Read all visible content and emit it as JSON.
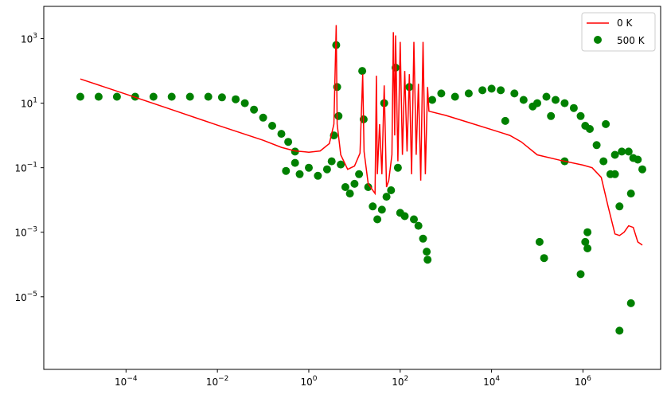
{
  "chart_data": {
    "type": "line+scatter",
    "title": "",
    "xlabel": "",
    "ylabel": "",
    "xscale": "log",
    "yscale": "log",
    "xlim_log10": [
      -5.8,
      7.7
    ],
    "ylim_log10": [
      -7.25,
      4.0
    ],
    "grid": false,
    "legend_position": "top-right",
    "x_ticks": [
      {
        "exp": -4,
        "base": "10",
        "sup": "−4"
      },
      {
        "exp": -2,
        "base": "10",
        "sup": "−2"
      },
      {
        "exp": 0,
        "base": "10",
        "sup": "0"
      },
      {
        "exp": 2,
        "base": "10",
        "sup": "2"
      },
      {
        "exp": 4,
        "base": "10",
        "sup": "4"
      },
      {
        "exp": 6,
        "base": "10",
        "sup": "6"
      }
    ],
    "y_ticks": [
      {
        "exp": -5,
        "base": "10",
        "sup": "−5"
      },
      {
        "exp": -3,
        "base": "10",
        "sup": "−3"
      },
      {
        "exp": -1,
        "base": "10",
        "sup": "−1"
      },
      {
        "exp": 1,
        "base": "10",
        "sup": "1"
      },
      {
        "exp": 3,
        "base": "10",
        "sup": "3"
      }
    ],
    "series": [
      {
        "name": "0 K",
        "kind": "line",
        "color": "#ff0000",
        "points_log10": [
          [
            -5.0,
            1.75
          ],
          [
            -4.0,
            1.28
          ],
          [
            -3.0,
            0.8
          ],
          [
            -2.0,
            0.32
          ],
          [
            -1.0,
            -0.15
          ],
          [
            -0.6,
            -0.37
          ],
          [
            -0.3,
            -0.48
          ],
          [
            0.0,
            -0.52
          ],
          [
            0.25,
            -0.48
          ],
          [
            0.45,
            -0.25
          ],
          [
            0.55,
            0.35
          ],
          [
            0.6,
            3.42
          ],
          [
            0.62,
            0.35
          ],
          [
            0.7,
            -0.6
          ],
          [
            0.85,
            -1.05
          ],
          [
            1.0,
            -0.95
          ],
          [
            1.12,
            -0.55
          ],
          [
            1.18,
            1.9
          ],
          [
            1.21,
            -0.5
          ],
          [
            1.3,
            -1.5
          ],
          [
            1.45,
            -1.8
          ],
          [
            1.48,
            1.85
          ],
          [
            1.5,
            -1.2
          ],
          [
            1.55,
            0.35
          ],
          [
            1.6,
            -1.2
          ],
          [
            1.65,
            1.55
          ],
          [
            1.7,
            -1.6
          ],
          [
            1.75,
            -1.4
          ],
          [
            1.82,
            -0.6
          ],
          [
            1.85,
            3.2
          ],
          [
            1.88,
            0.0
          ],
          [
            1.9,
            3.1
          ],
          [
            1.95,
            -0.8
          ],
          [
            2.0,
            2.9
          ],
          [
            2.05,
            -0.6
          ],
          [
            2.1,
            2.0
          ],
          [
            2.15,
            -0.5
          ],
          [
            2.2,
            1.9
          ],
          [
            2.25,
            -1.2
          ],
          [
            2.3,
            2.9
          ],
          [
            2.35,
            -0.6
          ],
          [
            2.4,
            1.6
          ],
          [
            2.45,
            -1.4
          ],
          [
            2.5,
            2.9
          ],
          [
            2.55,
            -1.2
          ],
          [
            2.6,
            1.5
          ],
          [
            2.63,
            0.75
          ],
          [
            3.0,
            0.62
          ],
          [
            3.5,
            0.4
          ],
          [
            4.0,
            0.18
          ],
          [
            4.4,
            0.0
          ],
          [
            4.65,
            -0.2
          ],
          [
            5.0,
            -0.6
          ],
          [
            5.5,
            -0.77
          ],
          [
            6.0,
            -0.92
          ],
          [
            6.2,
            -1.0
          ],
          [
            6.4,
            -1.3
          ],
          [
            6.55,
            -2.2
          ],
          [
            6.7,
            -3.05
          ],
          [
            6.8,
            -3.1
          ],
          [
            6.9,
            -3.0
          ],
          [
            7.0,
            -2.8
          ],
          [
            7.1,
            -2.85
          ],
          [
            7.2,
            -3.3
          ],
          [
            7.3,
            -3.4
          ]
        ]
      },
      {
        "name": "500 K",
        "kind": "scatter",
        "color": "#008000",
        "points_log10": [
          [
            -5.0,
            1.2
          ],
          [
            -4.6,
            1.2
          ],
          [
            -4.2,
            1.2
          ],
          [
            -3.8,
            1.2
          ],
          [
            -3.4,
            1.2
          ],
          [
            -3.0,
            1.2
          ],
          [
            -2.6,
            1.2
          ],
          [
            -2.2,
            1.2
          ],
          [
            -1.9,
            1.18
          ],
          [
            -1.6,
            1.12
          ],
          [
            -1.4,
            1.0
          ],
          [
            -1.2,
            0.8
          ],
          [
            -1.0,
            0.55
          ],
          [
            -0.8,
            0.3
          ],
          [
            -0.6,
            0.05
          ],
          [
            -0.45,
            -0.2
          ],
          [
            -0.3,
            -0.5
          ],
          [
            -0.3,
            -0.85
          ],
          [
            -0.5,
            -1.1
          ],
          [
            -0.2,
            -1.2
          ],
          [
            0.0,
            -1.0
          ],
          [
            0.2,
            -1.25
          ],
          [
            0.4,
            -1.05
          ],
          [
            0.5,
            -0.8
          ],
          [
            0.55,
            0.0
          ],
          [
            0.6,
            2.8
          ],
          [
            0.62,
            1.5
          ],
          [
            0.65,
            0.6
          ],
          [
            0.7,
            -0.9
          ],
          [
            0.8,
            -1.6
          ],
          [
            0.9,
            -1.8
          ],
          [
            1.0,
            -1.5
          ],
          [
            1.1,
            -1.2
          ],
          [
            1.17,
            2.0
          ],
          [
            1.2,
            0.5
          ],
          [
            1.3,
            -1.6
          ],
          [
            1.4,
            -2.2
          ],
          [
            1.5,
            -2.6
          ],
          [
            1.6,
            -2.3
          ],
          [
            1.65,
            1.0
          ],
          [
            1.7,
            -1.9
          ],
          [
            1.8,
            -1.7
          ],
          [
            1.9,
            2.1
          ],
          [
            1.95,
            -1.0
          ],
          [
            2.0,
            -2.4
          ],
          [
            2.1,
            -2.5
          ],
          [
            2.2,
            1.5
          ],
          [
            2.3,
            -2.6
          ],
          [
            2.4,
            -2.8
          ],
          [
            2.5,
            -3.2
          ],
          [
            2.58,
            -3.6
          ],
          [
            2.6,
            -3.85
          ],
          [
            2.7,
            1.1
          ],
          [
            2.9,
            1.3
          ],
          [
            3.2,
            1.2
          ],
          [
            3.5,
            1.3
          ],
          [
            3.8,
            1.4
          ],
          [
            4.0,
            1.45
          ],
          [
            4.2,
            1.4
          ],
          [
            4.5,
            1.3
          ],
          [
            4.7,
            1.1
          ],
          [
            4.9,
            0.9
          ],
          [
            5.0,
            1.0
          ],
          [
            5.2,
            1.2
          ],
          [
            5.4,
            1.1
          ],
          [
            5.6,
            1.0
          ],
          [
            5.8,
            0.85
          ],
          [
            5.95,
            0.6
          ],
          [
            6.05,
            0.3
          ],
          [
            6.15,
            0.2
          ],
          [
            6.3,
            -0.3
          ],
          [
            6.45,
            -0.8
          ],
          [
            6.6,
            -1.2
          ],
          [
            6.7,
            -0.6
          ],
          [
            6.85,
            -0.5
          ],
          [
            7.0,
            -0.5
          ],
          [
            7.1,
            -0.7
          ],
          [
            7.2,
            -0.75
          ],
          [
            7.3,
            -1.05
          ],
          [
            5.05,
            -3.3
          ],
          [
            5.15,
            -3.8
          ],
          [
            5.95,
            -4.3
          ],
          [
            6.05,
            -3.3
          ],
          [
            6.1,
            -3.5
          ],
          [
            6.1,
            -3.0
          ],
          [
            6.8,
            -2.2
          ],
          [
            7.05,
            -1.8
          ],
          [
            6.8,
            -6.05
          ],
          [
            7.05,
            -5.2
          ],
          [
            4.3,
            0.45
          ],
          [
            5.3,
            0.6
          ],
          [
            5.6,
            -0.8
          ],
          [
            6.5,
            0.35
          ],
          [
            6.7,
            -1.2
          ]
        ]
      }
    ]
  }
}
